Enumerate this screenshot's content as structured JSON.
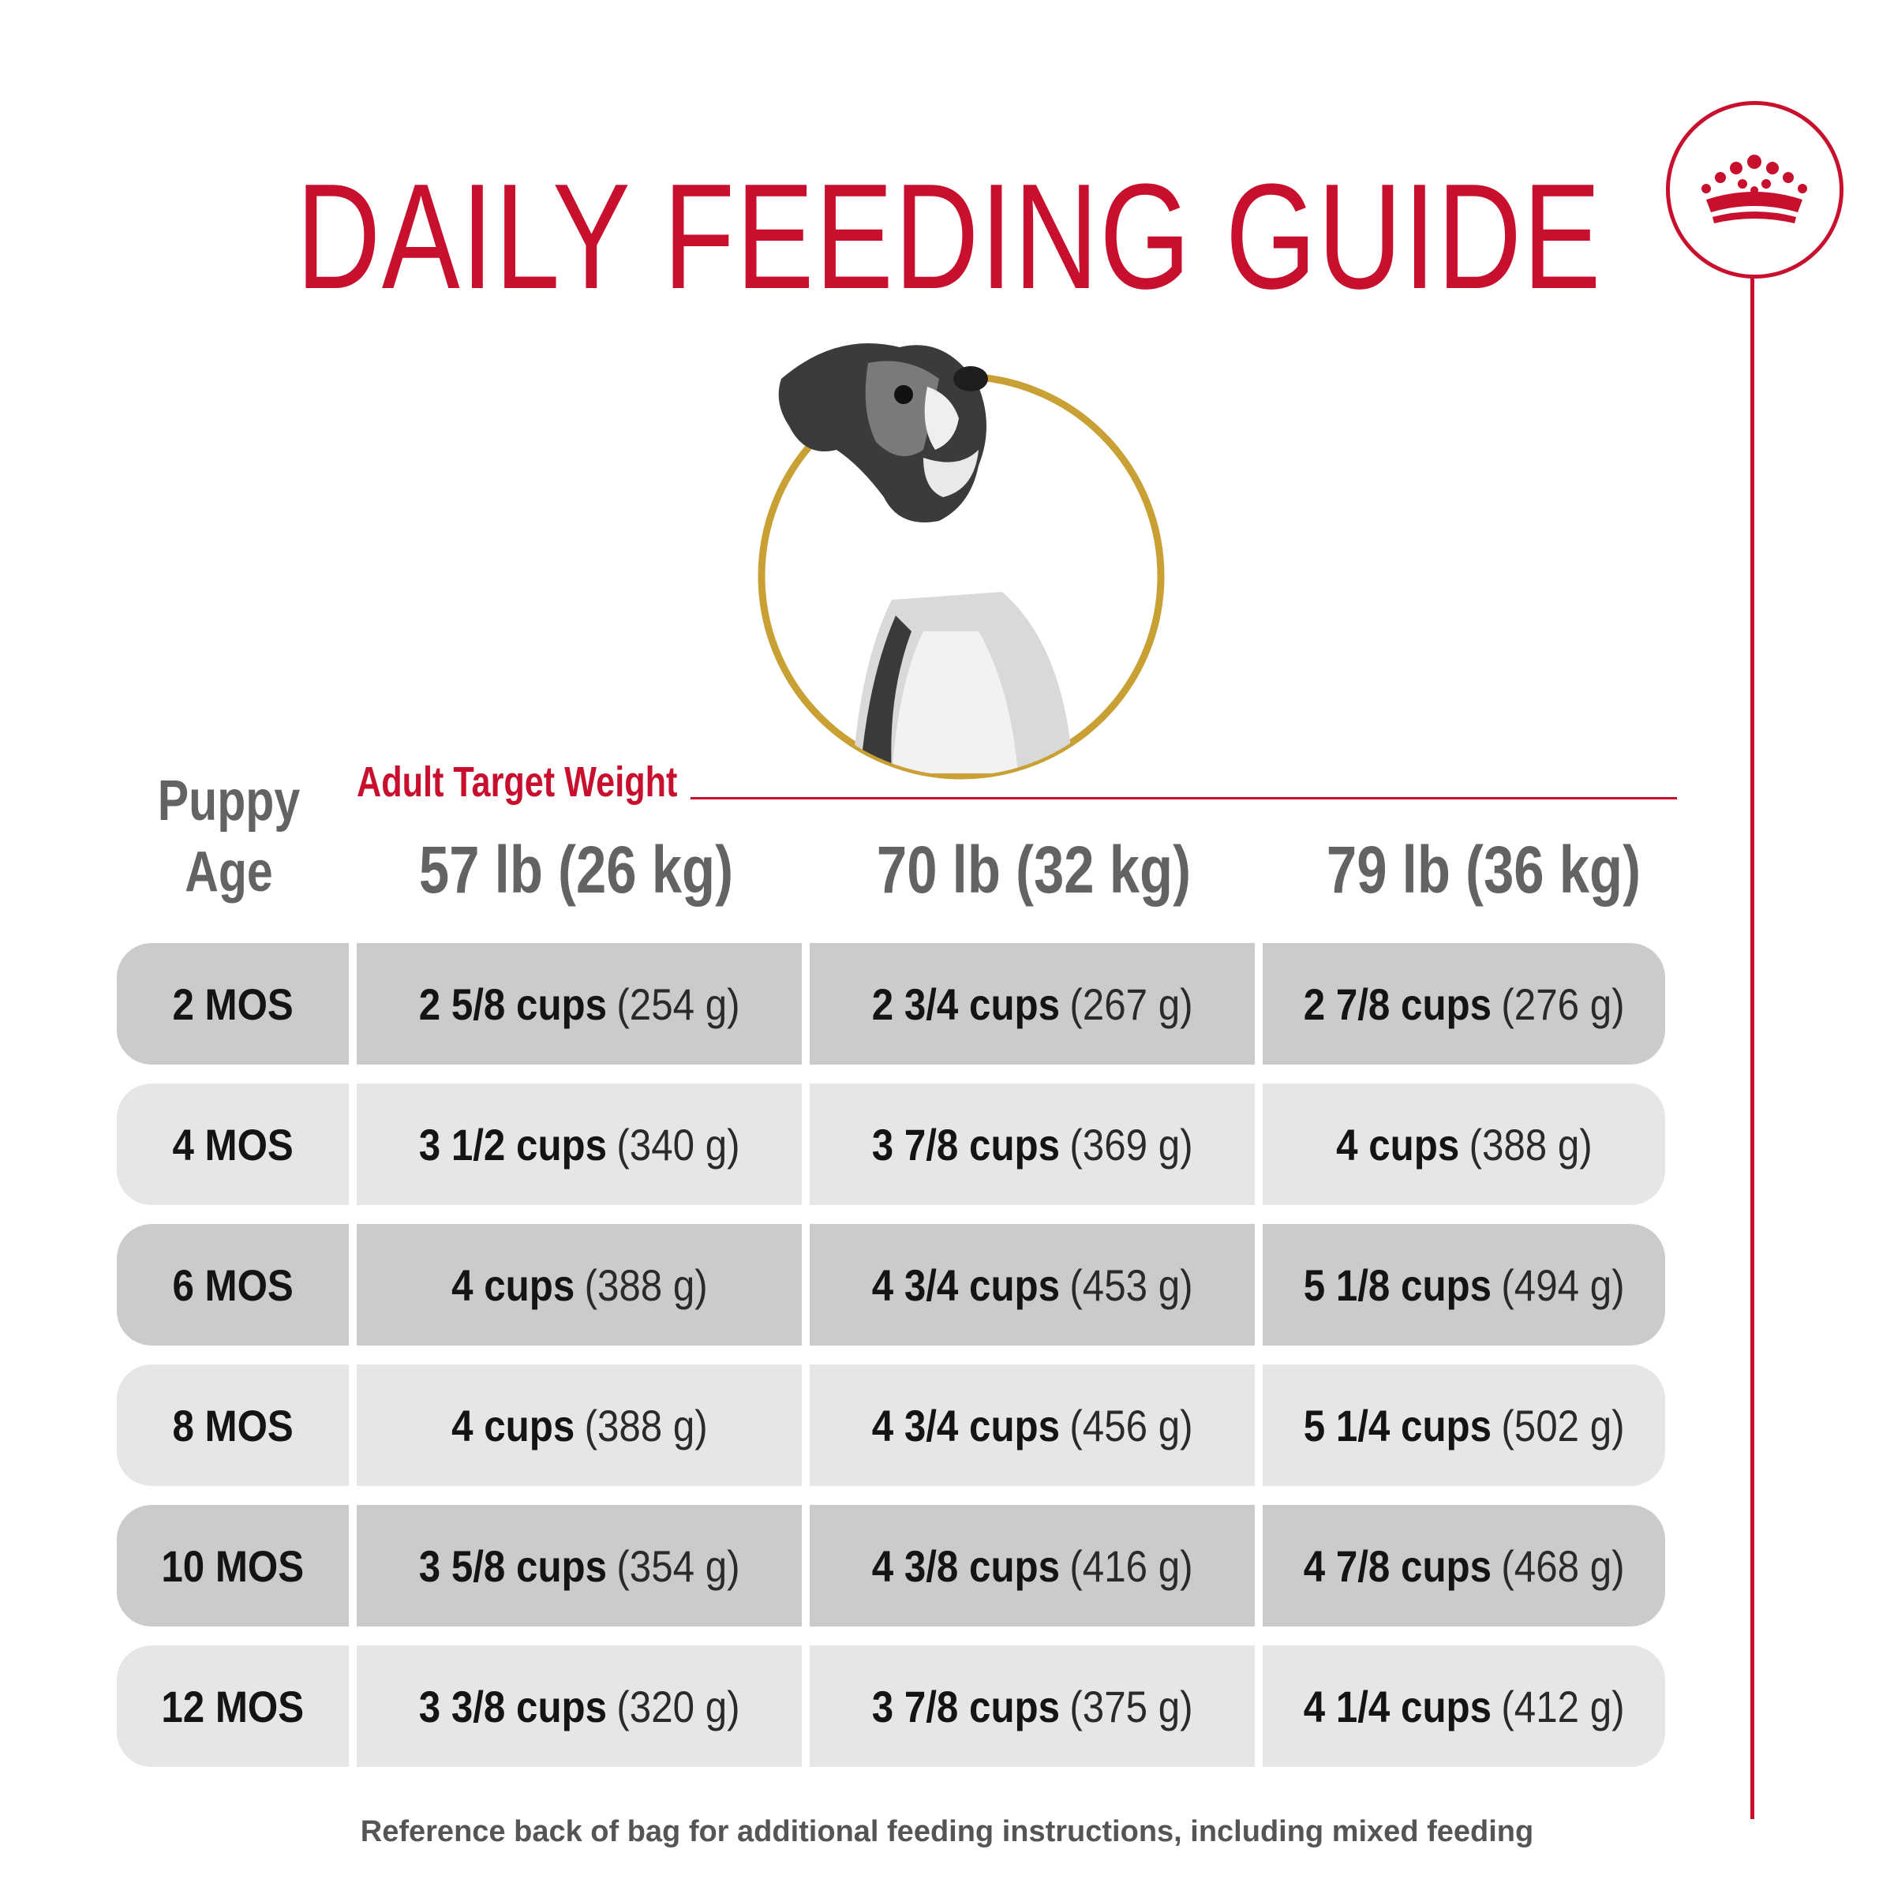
{
  "title": "DAILY FEEDING GUIDE",
  "brand": {
    "logo_icon": "crown-icon",
    "accent_color": "#c8102e"
  },
  "header": {
    "age_label": "Puppy Age",
    "target_label": "Adult Target Weight",
    "weights": [
      "57 lb (26 kg)",
      "70 lb (32 kg)",
      "79 lb (36 kg)"
    ]
  },
  "rows": [
    {
      "age": "2 MOS",
      "cells": [
        {
          "cups": "2 5/8 cups",
          "grams": "(254 g)"
        },
        {
          "cups": "2 3/4 cups",
          "grams": "(267 g)"
        },
        {
          "cups": "2 7/8 cups",
          "grams": "(276 g)"
        }
      ]
    },
    {
      "age": "4 MOS",
      "cells": [
        {
          "cups": "3 1/2 cups",
          "grams": "(340 g)"
        },
        {
          "cups": "3 7/8 cups",
          "grams": "(369 g)"
        },
        {
          "cups": "4 cups",
          "grams": "(388 g)"
        }
      ]
    },
    {
      "age": "6 MOS",
      "cells": [
        {
          "cups": "4 cups",
          "grams": "(388 g)"
        },
        {
          "cups": "4 3/4 cups",
          "grams": "(453 g)"
        },
        {
          "cups": "5 1/8 cups",
          "grams": "(494 g)"
        }
      ]
    },
    {
      "age": "8 MOS",
      "cells": [
        {
          "cups": "4 cups",
          "grams": "(388 g)"
        },
        {
          "cups": "4 3/4 cups",
          "grams": "(456 g)"
        },
        {
          "cups": "5 1/4 cups",
          "grams": "(502 g)"
        }
      ]
    },
    {
      "age": "10 MOS",
      "cells": [
        {
          "cups": "3 5/8 cups",
          "grams": "(354 g)"
        },
        {
          "cups": "4 3/8 cups",
          "grams": "(416 g)"
        },
        {
          "cups": "4 7/8 cups",
          "grams": "(468 g)"
        }
      ]
    },
    {
      "age": "12 MOS",
      "cells": [
        {
          "cups": "3 3/8 cups",
          "grams": "(320 g)"
        },
        {
          "cups": "3 7/8 cups",
          "grams": "(375 g)"
        },
        {
          "cups": "4 1/4 cups",
          "grams": "(412 g)"
        }
      ]
    }
  ],
  "footnote": "Reference back of bag for additional feeding instructions, including mixed feeding"
}
